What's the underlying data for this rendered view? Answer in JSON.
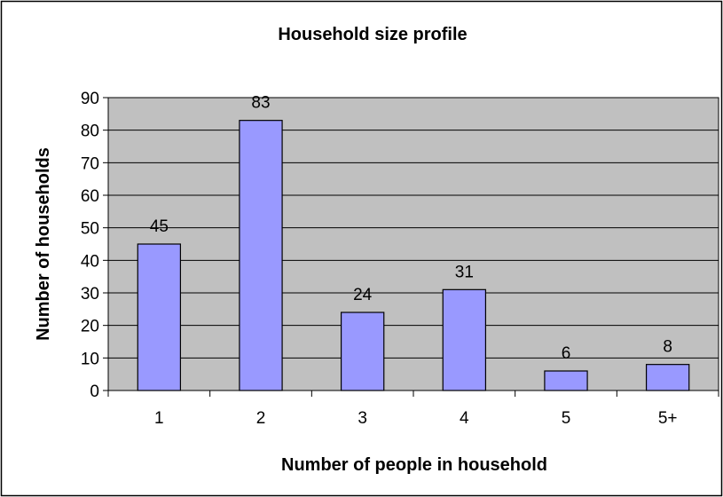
{
  "chart_data": {
    "type": "bar",
    "title": "Household size profile",
    "xlabel": "Number of people in household",
    "ylabel": "Number of households",
    "categories": [
      "1",
      "2",
      "3",
      "4",
      "5",
      "5+"
    ],
    "values": [
      45,
      83,
      24,
      31,
      6,
      8
    ],
    "data_labels": [
      "45",
      "83",
      "24",
      "31",
      "6",
      "8"
    ],
    "ylim": [
      0,
      90
    ],
    "yticks": [
      0,
      10,
      20,
      30,
      40,
      50,
      60,
      70,
      80,
      90
    ],
    "grid": true,
    "legend": "none",
    "colors": {
      "bar_fill": "#9999ff",
      "bar_stroke": "#000000",
      "plot_background": "#c0c0c0",
      "gridline": "#000000",
      "page_background": "#ffffff"
    }
  }
}
